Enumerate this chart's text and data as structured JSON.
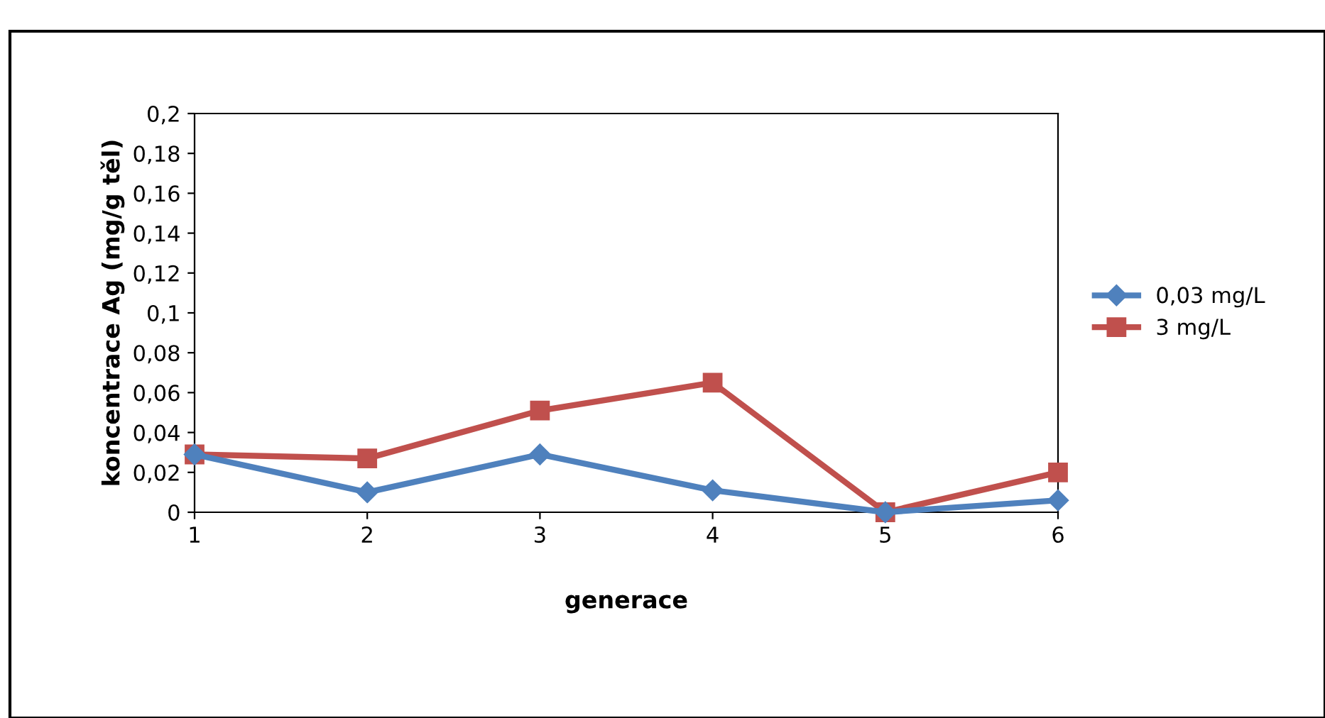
{
  "chart_data": {
    "type": "line",
    "xlabel": "generace",
    "ylabel": "koncentrace Ag (mg/g těl)",
    "categories": [
      "1",
      "2",
      "3",
      "4",
      "5",
      "6"
    ],
    "series": [
      {
        "name": "0,03 mg/L",
        "color": "#4f81bd",
        "marker": "diamond",
        "values": [
          0.029,
          0.01,
          0.029,
          0.011,
          0,
          0.006
        ]
      },
      {
        "name": "3 mg/L",
        "color": "#c0504d",
        "marker": "square",
        "values": [
          0.029,
          0.027,
          0.051,
          0.065,
          0,
          0.02
        ]
      }
    ],
    "ylim": [
      0,
      0.2
    ],
    "yticks": [
      0,
      {
        "value": 0.02,
        "label": "0,02"
      },
      {
        "value": 0.04,
        "label": "0,04"
      },
      {
        "value": 0.06,
        "label": "0,06"
      },
      {
        "value": 0.08,
        "label": "0,08"
      },
      {
        "value": 0.1,
        "label": "0,1"
      },
      {
        "value": 0.12,
        "label": "0,12"
      },
      {
        "value": 0.14,
        "label": "0,14"
      },
      {
        "value": 0.16,
        "label": "0,16"
      },
      {
        "value": 0.18,
        "label": "0,18"
      },
      {
        "value": 0.2,
        "label": "0,2"
      }
    ],
    "grid": false,
    "legend": "right",
    "line_style": "solid"
  }
}
